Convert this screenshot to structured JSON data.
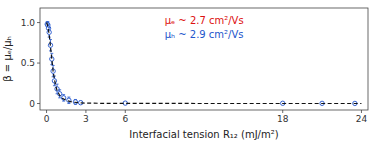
{
  "chart_data": {
    "type": "scatter",
    "xlabel": "Interfacial tension R₁₂ (mJ/m²)",
    "ylabel": "β = μₑ/μₕ",
    "xlim": [
      -0.5,
      24.5
    ],
    "xticks": [
      0,
      3,
      6,
      18,
      24
    ],
    "ylim": [
      -0.08,
      1.18
    ],
    "yticks": [
      0,
      0.5,
      {
        "value": 1,
        "label": "1.0"
      }
    ],
    "grid": false,
    "series": [
      {
        "type": "scatter",
        "color": "#2255cc",
        "marker": "circle",
        "x": [
          0.05,
          0.1,
          0.15,
          0.2,
          0.3,
          0.4,
          0.5,
          0.6,
          0.8,
          1.0,
          1.3,
          1.7,
          2.2,
          2.6,
          6.0,
          18.0,
          21.0,
          23.5
        ],
        "values": [
          0.98,
          0.97,
          0.93,
          0.88,
          0.72,
          0.55,
          0.4,
          0.28,
          0.18,
          0.12,
          0.07,
          0.04,
          0.02,
          0.01,
          0.005,
          0.003,
          0.002,
          0.001
        ],
        "errors": [
          0.03,
          0.04,
          0.05,
          0.06,
          0.07,
          0.07,
          0.07,
          0.06,
          0.06,
          0.05,
          0.04,
          0.04,
          0.03,
          0.02,
          0.015,
          0.008,
          0.005,
          0.003
        ]
      },
      {
        "type": "line",
        "color": "#111111",
        "line_style": "dashed",
        "x": [
          0.0,
          0.05,
          0.1,
          0.15,
          0.2,
          0.25,
          0.3,
          0.4,
          0.5,
          0.6,
          0.7,
          0.8,
          1.0,
          1.2,
          1.5,
          2.0,
          2.5,
          3.0,
          4.0,
          5.0,
          6.0,
          7.0,
          18.0,
          20.0,
          22.0,
          24.0
        ],
        "values": [
          1.0,
          0.98,
          0.95,
          0.9,
          0.85,
          0.78,
          0.7,
          0.55,
          0.4,
          0.3,
          0.22,
          0.16,
          0.1,
          0.065,
          0.038,
          0.018,
          0.009,
          0.005,
          0.003,
          0.002,
          0.001,
          0.0008,
          0.0003,
          0.0002,
          0.00015,
          0.0001
        ]
      }
    ],
    "annotations": [
      {
        "text": "μₑ ~ 2.7 cm²/Vs",
        "color": "#dd1111"
      },
      {
        "text": "μₕ ~ 2.9 cm²/Vs",
        "color": "#2255cc"
      }
    ]
  }
}
